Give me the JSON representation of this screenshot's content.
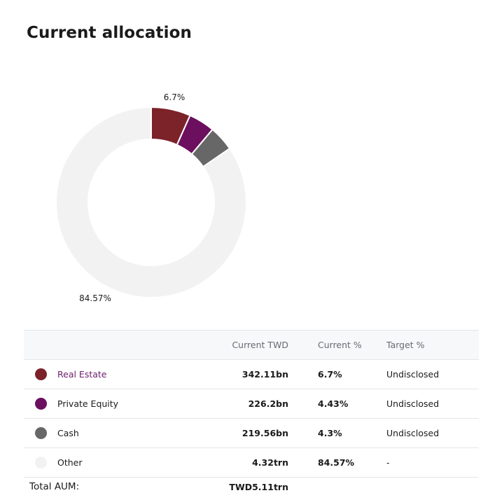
{
  "title": "Current allocation",
  "chart_data": {
    "type": "pie",
    "donut": true,
    "slices": [
      {
        "name": "Real Estate",
        "percent": 6.7,
        "color": "#7c2229"
      },
      {
        "name": "Private Equity",
        "percent": 4.43,
        "color": "#6b0f5e"
      },
      {
        "name": "Cash",
        "percent": 4.3,
        "color": "#676767"
      },
      {
        "name": "Other",
        "percent": 84.57,
        "color": "#f2f2f2"
      }
    ],
    "labels": [
      "6.7%",
      "84.57%"
    ]
  },
  "table": {
    "headers": {
      "current_twd": "Current TWD",
      "current_pct": "Current %",
      "target_pct": "Target %"
    },
    "rows": [
      {
        "name": "Real Estate",
        "color": "#7c2229",
        "current_twd": "342.11bn",
        "current_pct": "6.7%",
        "target_pct": "Undisclosed"
      },
      {
        "name": "Private Equity",
        "color": "#6b0f5e",
        "current_twd": "226.2bn",
        "current_pct": "4.43%",
        "target_pct": "Undisclosed"
      },
      {
        "name": "Cash",
        "color": "#676767",
        "current_twd": "219.56bn",
        "current_pct": "4.3%",
        "target_pct": "Undisclosed"
      },
      {
        "name": "Other",
        "color": "#f2f2f2",
        "current_twd": "4.32trn",
        "current_pct": "84.57%",
        "target_pct": "-"
      }
    ],
    "total": {
      "label": "Total AUM:",
      "value": "TWD5.11trn"
    }
  }
}
